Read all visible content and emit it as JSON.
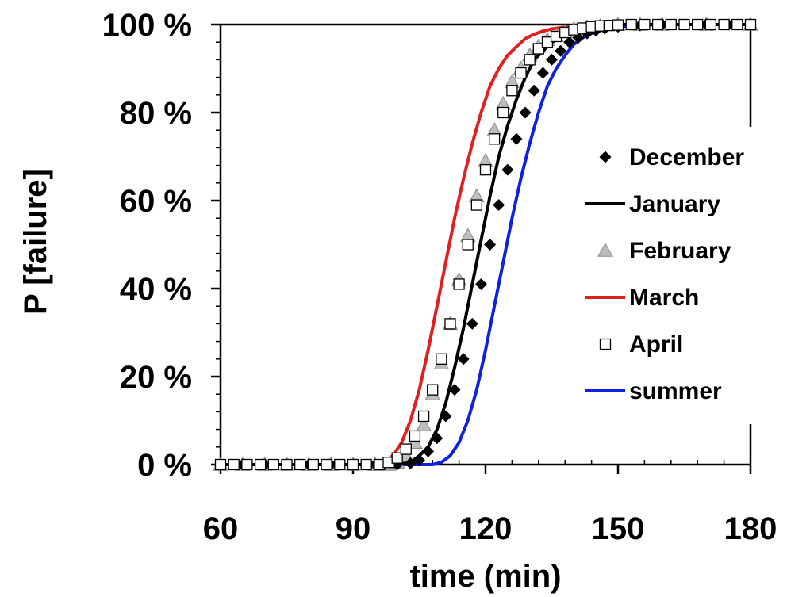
{
  "chart_data": {
    "type": "line",
    "title": "",
    "xlabel": "time (min)",
    "ylabel": "P [failure]",
    "xlim": [
      60,
      180
    ],
    "ylim": [
      0,
      100
    ],
    "x_ticks": [
      60,
      90,
      120,
      150,
      180
    ],
    "x_tick_labels": [
      "60",
      "90",
      "120",
      "150",
      "180"
    ],
    "y_ticks": [
      0,
      20,
      40,
      60,
      80,
      100
    ],
    "y_tick_labels": [
      "0 %",
      "20 %",
      "40 %",
      "60 %",
      "80 %",
      "100 %"
    ],
    "grid": false,
    "legend_position": "right",
    "series": [
      {
        "name": "December",
        "style": "marker",
        "marker": "diamond",
        "color": "#000000",
        "x": [
          60,
          65,
          70,
          75,
          80,
          85,
          90,
          95,
          100,
          103,
          105,
          107,
          109,
          111,
          113,
          115,
          117,
          119,
          121,
          123,
          125,
          127,
          129,
          131,
          133,
          135,
          137,
          139,
          141,
          143,
          145,
          147,
          150,
          155,
          160,
          165,
          170,
          175,
          180
        ],
        "y": [
          0,
          0,
          0,
          0,
          0,
          0,
          0,
          0,
          0,
          0.3,
          1,
          3,
          6,
          11,
          17,
          24,
          32,
          41,
          50,
          59,
          67,
          74,
          80,
          85,
          89,
          92,
          94,
          96,
          97,
          98,
          98.6,
          99.1,
          99.5,
          99.8,
          100,
          100,
          100,
          100,
          100
        ]
      },
      {
        "name": "January",
        "style": "line",
        "color": "#000000",
        "x": [
          60,
          100,
          103,
          105,
          107,
          109,
          111,
          113,
          115,
          117,
          119,
          121,
          123,
          125,
          127,
          129,
          131,
          133,
          135,
          137,
          140,
          143,
          146,
          150,
          160,
          170,
          180
        ],
        "y": [
          0,
          0,
          0.5,
          2,
          4,
          8,
          14,
          22,
          31,
          41,
          51,
          61,
          70,
          77,
          83,
          88,
          92,
          94,
          96,
          97,
          98.5,
          99.3,
          99.7,
          100,
          100,
          100,
          100
        ]
      },
      {
        "name": "February",
        "style": "marker",
        "marker": "triangle",
        "color": "#bdbdbd",
        "x": [
          60,
          65,
          70,
          75,
          80,
          85,
          90,
          95,
          98,
          100,
          102,
          104,
          106,
          108,
          110,
          112,
          114,
          116,
          118,
          120,
          122,
          124,
          126,
          128,
          130,
          132,
          134,
          136,
          138,
          140,
          143,
          146,
          150,
          155,
          160,
          170,
          180
        ],
        "y": [
          0,
          0,
          0,
          0,
          0,
          0,
          0,
          0,
          0,
          0.5,
          2,
          5,
          9,
          16,
          23,
          32,
          42,
          52,
          61,
          69,
          76,
          82,
          87,
          90,
          93,
          95,
          96.5,
          97.5,
          98.3,
          99,
          99.4,
          99.7,
          100,
          100,
          100,
          100,
          100
        ]
      },
      {
        "name": "March",
        "style": "line",
        "color": "#e02020",
        "x": [
          60,
          95,
          97,
          99,
          101,
          103,
          105,
          107,
          109,
          111,
          113,
          115,
          117,
          119,
          121,
          123,
          125,
          127,
          129,
          131,
          133,
          135,
          138,
          142,
          146,
          150,
          160,
          170,
          180
        ],
        "y": [
          0,
          0,
          0.5,
          2,
          5,
          10,
          17,
          26,
          36,
          46,
          56,
          65,
          73,
          80,
          86,
          90,
          93,
          95,
          96.8,
          97.8,
          98.5,
          99,
          99.4,
          99.7,
          99.9,
          100,
          100,
          100,
          100
        ]
      },
      {
        "name": "April",
        "style": "marker",
        "marker": "square",
        "color": "#000000",
        "x": [
          60,
          63,
          66,
          69,
          72,
          75,
          78,
          81,
          84,
          87,
          90,
          93,
          96,
          98,
          100,
          102,
          104,
          106,
          108,
          110,
          112,
          114,
          116,
          118,
          120,
          122,
          124,
          126,
          128,
          130,
          132,
          134,
          136,
          138,
          140,
          142,
          144,
          146,
          148,
          150,
          153,
          156,
          159,
          162,
          165,
          168,
          171,
          174,
          177,
          180
        ],
        "y": [
          0,
          0,
          0,
          0,
          0,
          0,
          0,
          0,
          0,
          0,
          0,
          0,
          0,
          0.5,
          1.5,
          3.5,
          6.5,
          11,
          17,
          24,
          32,
          41,
          50,
          59,
          67,
          74,
          80,
          85,
          89,
          92,
          94.5,
          96,
          97.3,
          98.2,
          98.8,
          99.2,
          99.5,
          99.7,
          99.8,
          99.9,
          100,
          100,
          100,
          100,
          100,
          100,
          100,
          100,
          100,
          100
        ]
      },
      {
        "name": "summer",
        "style": "line",
        "color": "#1020e0",
        "x": [
          60,
          108,
          110,
          112,
          114,
          116,
          118,
          120,
          122,
          124,
          126,
          128,
          130,
          132,
          134,
          136,
          138,
          140,
          142,
          144,
          147,
          150,
          155,
          160,
          170,
          180
        ],
        "y": [
          0,
          0,
          0.5,
          2,
          5,
          10,
          17,
          26,
          36,
          46,
          56,
          65,
          73,
          80,
          86,
          90,
          93,
          95.5,
          97,
          98,
          99,
          99.5,
          99.9,
          100,
          100,
          100
        ]
      }
    ]
  }
}
